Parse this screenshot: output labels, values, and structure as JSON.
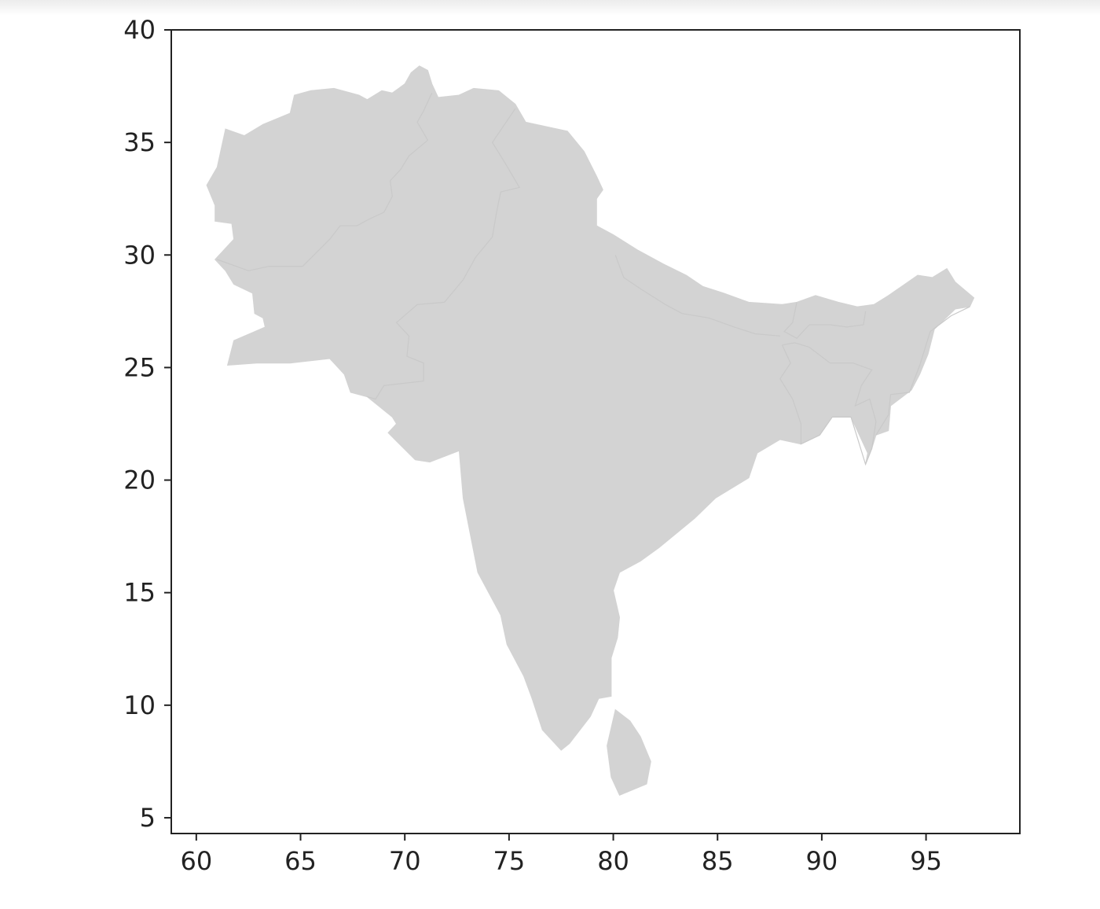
{
  "colors": {
    "land_fill": "#d3d3d3",
    "axis": "#222222",
    "background": "#ffffff"
  },
  "chart_data": {
    "type": "map",
    "title": "",
    "xlabel": "",
    "ylabel": "",
    "xlim": [
      58.8,
      99.5
    ],
    "ylim": [
      4.3,
      40.0
    ],
    "x_ticks": [
      60,
      65,
      70,
      75,
      80,
      85,
      90,
      95
    ],
    "y_ticks": [
      5,
      10,
      15,
      20,
      25,
      30,
      35,
      40
    ],
    "x_tick_labels": [
      "60",
      "65",
      "70",
      "75",
      "80",
      "85",
      "90",
      "95"
    ],
    "y_tick_labels": [
      "5",
      "10",
      "15",
      "20",
      "25",
      "30",
      "35",
      "40"
    ],
    "grid": false,
    "legend": "none",
    "regions": [
      {
        "id": "mainland",
        "lonlat": [
          [
            61.0,
            33.9
          ],
          [
            61.4,
            35.6
          ],
          [
            62.3,
            35.3
          ],
          [
            63.2,
            35.8
          ],
          [
            64.5,
            36.3
          ],
          [
            64.7,
            37.1
          ],
          [
            65.5,
            37.3
          ],
          [
            66.6,
            37.4
          ],
          [
            67.8,
            37.1
          ],
          [
            68.2,
            36.9
          ],
          [
            68.9,
            37.3
          ],
          [
            69.4,
            37.2
          ],
          [
            70.0,
            37.6
          ],
          [
            70.3,
            38.1
          ],
          [
            70.7,
            38.4
          ],
          [
            71.1,
            38.2
          ],
          [
            71.3,
            37.6
          ],
          [
            71.6,
            37.0
          ],
          [
            72.6,
            37.1
          ],
          [
            73.3,
            37.4
          ],
          [
            74.5,
            37.3
          ],
          [
            75.3,
            36.7
          ],
          [
            75.8,
            35.9
          ],
          [
            76.8,
            35.7
          ],
          [
            77.8,
            35.5
          ],
          [
            78.6,
            34.6
          ],
          [
            79.2,
            33.5
          ],
          [
            79.5,
            32.9
          ],
          [
            79.2,
            32.5
          ],
          [
            79.2,
            31.3
          ],
          [
            80.0,
            30.9
          ],
          [
            81.2,
            30.2
          ],
          [
            82.4,
            29.6
          ],
          [
            83.5,
            29.1
          ],
          [
            84.3,
            28.6
          ],
          [
            85.3,
            28.3
          ],
          [
            86.5,
            27.9
          ],
          [
            88.1,
            27.8
          ],
          [
            88.8,
            27.9
          ],
          [
            89.7,
            28.2
          ],
          [
            90.8,
            27.9
          ],
          [
            91.7,
            27.7
          ],
          [
            92.5,
            27.8
          ],
          [
            93.2,
            28.2
          ],
          [
            94.6,
            29.1
          ],
          [
            95.3,
            29.0
          ],
          [
            96.0,
            29.4
          ],
          [
            96.4,
            28.8
          ],
          [
            97.3,
            28.1
          ],
          [
            97.1,
            27.7
          ],
          [
            96.4,
            27.6
          ],
          [
            95.4,
            26.7
          ],
          [
            95.1,
            25.6
          ],
          [
            94.7,
            24.7
          ],
          [
            94.3,
            24.0
          ],
          [
            93.3,
            23.3
          ],
          [
            93.2,
            22.2
          ],
          [
            92.6,
            22.0
          ],
          [
            92.4,
            21.4
          ],
          [
            92.1,
            20.7
          ],
          [
            92.2,
            21.2
          ],
          [
            91.4,
            22.8
          ],
          [
            90.5,
            22.8
          ],
          [
            89.9,
            22.0
          ],
          [
            89.0,
            21.6
          ],
          [
            88.0,
            21.8
          ],
          [
            86.9,
            21.2
          ],
          [
            86.5,
            20.1
          ],
          [
            84.9,
            19.2
          ],
          [
            83.9,
            18.3
          ],
          [
            82.2,
            17.0
          ],
          [
            81.3,
            16.4
          ],
          [
            80.3,
            15.9
          ],
          [
            80.0,
            15.1
          ],
          [
            80.3,
            13.9
          ],
          [
            80.2,
            13.0
          ],
          [
            79.9,
            12.1
          ],
          [
            79.9,
            10.4
          ],
          [
            79.3,
            10.3
          ],
          [
            78.9,
            9.5
          ],
          [
            77.9,
            8.3
          ],
          [
            77.5,
            8.0
          ],
          [
            76.6,
            8.9
          ],
          [
            76.1,
            10.3
          ],
          [
            75.7,
            11.3
          ],
          [
            74.9,
            12.7
          ],
          [
            74.6,
            14.0
          ],
          [
            73.5,
            15.9
          ],
          [
            72.8,
            19.2
          ],
          [
            72.6,
            21.4
          ],
          [
            72.6,
            21.3
          ],
          [
            71.2,
            20.8
          ],
          [
            70.5,
            20.9
          ],
          [
            69.2,
            22.1
          ],
          [
            69.6,
            22.5
          ],
          [
            69.4,
            22.8
          ],
          [
            68.2,
            23.7
          ],
          [
            67.4,
            23.9
          ],
          [
            67.1,
            24.7
          ],
          [
            66.4,
            25.4
          ],
          [
            64.5,
            25.2
          ],
          [
            62.9,
            25.2
          ],
          [
            61.5,
            25.1
          ],
          [
            61.8,
            26.2
          ],
          [
            63.3,
            26.8
          ],
          [
            63.2,
            27.2
          ],
          [
            62.8,
            27.4
          ],
          [
            62.7,
            28.3
          ],
          [
            61.8,
            28.7
          ],
          [
            61.4,
            29.3
          ],
          [
            60.9,
            29.8
          ],
          [
            61.8,
            30.7
          ],
          [
            61.7,
            31.4
          ],
          [
            60.9,
            31.5
          ],
          [
            60.9,
            32.2
          ],
          [
            60.5,
            33.1
          ]
        ]
      },
      {
        "id": "island",
        "lonlat": [
          [
            80.1,
            9.8
          ],
          [
            80.8,
            9.3
          ],
          [
            81.3,
            8.6
          ],
          [
            81.8,
            7.5
          ],
          [
            81.6,
            6.5
          ],
          [
            80.3,
            6.0
          ],
          [
            79.9,
            6.8
          ],
          [
            79.7,
            8.2
          ],
          [
            80.1,
            9.8
          ]
        ]
      }
    ],
    "internal_borders": [
      {
        "id": "afghanistan-pakistan",
        "lonlat": [
          [
            71.3,
            37.2
          ],
          [
            70.9,
            36.4
          ],
          [
            70.6,
            35.9
          ],
          [
            71.1,
            35.1
          ],
          [
            70.2,
            34.4
          ],
          [
            69.8,
            33.8
          ],
          [
            69.3,
            33.3
          ],
          [
            69.4,
            32.6
          ],
          [
            69.0,
            31.9
          ],
          [
            68.3,
            31.6
          ],
          [
            67.7,
            31.3
          ],
          [
            66.9,
            31.3
          ],
          [
            66.4,
            30.7
          ],
          [
            65.1,
            29.5
          ],
          [
            63.5,
            29.5
          ],
          [
            62.5,
            29.3
          ],
          [
            61.0,
            29.8
          ]
        ]
      },
      {
        "id": "pakistan-india",
        "lonlat": [
          [
            75.3,
            36.5
          ],
          [
            74.2,
            35.0
          ],
          [
            74.8,
            34.1
          ],
          [
            75.5,
            33.0
          ],
          [
            74.6,
            32.8
          ],
          [
            74.4,
            31.9
          ],
          [
            74.2,
            30.8
          ],
          [
            73.4,
            29.9
          ],
          [
            72.8,
            28.9
          ],
          [
            71.9,
            27.9
          ],
          [
            70.6,
            27.8
          ],
          [
            69.6,
            27.0
          ],
          [
            70.2,
            26.4
          ],
          [
            70.1,
            25.5
          ],
          [
            70.9,
            25.2
          ],
          [
            70.9,
            24.4
          ],
          [
            69.0,
            24.2
          ],
          [
            68.6,
            23.6
          ],
          [
            68.2,
            23.7
          ]
        ]
      },
      {
        "id": "nepal-south",
        "lonlat": [
          [
            80.1,
            30.0
          ],
          [
            80.5,
            29.0
          ],
          [
            81.3,
            28.5
          ],
          [
            82.5,
            27.8
          ],
          [
            83.3,
            27.4
          ],
          [
            84.6,
            27.2
          ],
          [
            85.8,
            26.8
          ],
          [
            86.8,
            26.5
          ],
          [
            88.0,
            26.4
          ]
        ]
      },
      {
        "id": "sikkim-bhutan-west",
        "lonlat": [
          [
            88.8,
            27.9
          ],
          [
            88.6,
            27.0
          ],
          [
            88.2,
            26.6
          ],
          [
            88.8,
            26.3
          ],
          [
            89.4,
            26.9
          ]
        ]
      },
      {
        "id": "bhutan-south",
        "lonlat": [
          [
            89.4,
            26.9
          ],
          [
            90.4,
            26.9
          ],
          [
            91.2,
            26.8
          ],
          [
            92.0,
            26.9
          ],
          [
            92.1,
            27.5
          ]
        ]
      },
      {
        "id": "bangladesh-border",
        "lonlat": [
          [
            88.1,
            26.0
          ],
          [
            88.7,
            26.1
          ],
          [
            89.4,
            25.9
          ],
          [
            90.4,
            25.2
          ],
          [
            91.5,
            25.2
          ],
          [
            92.4,
            24.9
          ],
          [
            91.9,
            24.2
          ],
          [
            91.6,
            23.3
          ],
          [
            92.3,
            23.6
          ],
          [
            92.6,
            22.6
          ],
          [
            92.4,
            21.4
          ],
          [
            92.1,
            20.7
          ],
          [
            91.4,
            22.8
          ],
          [
            90.5,
            22.8
          ],
          [
            89.9,
            22.0
          ],
          [
            89.0,
            21.6
          ],
          [
            89.0,
            22.5
          ],
          [
            88.6,
            23.6
          ],
          [
            88.0,
            24.5
          ],
          [
            88.5,
            25.2
          ],
          [
            88.1,
            26.0
          ]
        ]
      },
      {
        "id": "myanmar-border",
        "lonlat": [
          [
            92.6,
            22.0
          ],
          [
            93.2,
            22.9
          ],
          [
            93.3,
            23.8
          ],
          [
            94.2,
            23.9
          ],
          [
            94.7,
            25.1
          ],
          [
            95.2,
            26.6
          ],
          [
            96.2,
            27.3
          ],
          [
            97.1,
            27.7
          ]
        ]
      }
    ]
  }
}
